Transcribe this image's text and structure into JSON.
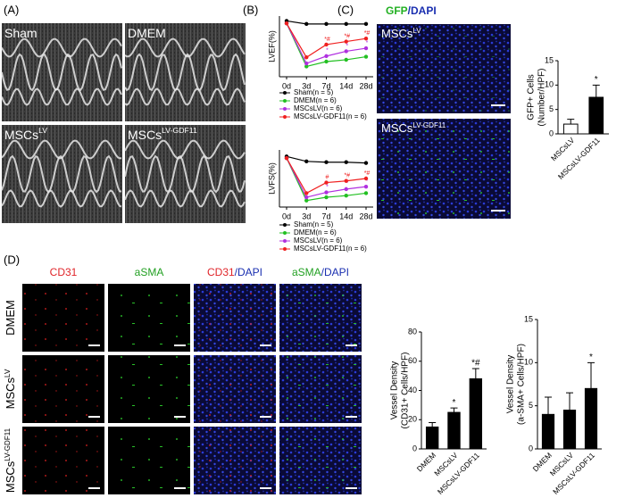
{
  "panels": {
    "a": "(A)",
    "b": "(B)",
    "c": "(C)",
    "d": "(D)"
  },
  "echo": [
    {
      "text": "Sham"
    },
    {
      "text": "DMEM"
    },
    {
      "text": "MSCs",
      "sup": "LV"
    },
    {
      "text": "MSCs",
      "sup": "LV-GDF11"
    }
  ],
  "gfp": {
    "title": [
      {
        "text": "GFP",
        "color": "#22b022"
      },
      {
        "text": "/DAPI",
        "color": "#1a2fb0"
      }
    ],
    "images": [
      {
        "text": "MSCs",
        "sup": "LV"
      },
      {
        "text": "MSCs",
        "sup": "LV-GDF11"
      }
    ]
  },
  "stain": {
    "columns": [
      [
        {
          "text": "CD31",
          "color": "#e0252a"
        }
      ],
      [
        {
          "text": "aSMA",
          "color": "#22a022"
        }
      ],
      [
        {
          "text": "CD31",
          "color": "#e0252a"
        },
        {
          "text": "/DAPI",
          "color": "#1a2fb0"
        }
      ],
      [
        {
          "text": "aSMA",
          "color": "#22a022"
        },
        {
          "text": "/DAPI",
          "color": "#1a2fb0"
        }
      ]
    ],
    "rows": [
      {
        "text": "DMEM"
      },
      {
        "text": "MSCs",
        "sup": "LV"
      },
      {
        "text": "MSCs",
        "sup": "LV-GDF11"
      }
    ]
  },
  "chart_data": [
    {
      "type": "line",
      "ylabel": "LVEF(%)",
      "categories": [
        "0d",
        "3d",
        "7d",
        "14d",
        "28d"
      ],
      "ylim": [
        0,
        100
      ],
      "series": [
        {
          "name": "Sham(n = 5)",
          "color": "#000000",
          "values": [
            92,
            87,
            87,
            87,
            87
          ]
        },
        {
          "name": "DMEM(n = 6)",
          "color": "#22c022",
          "values": [
            88,
            17,
            25,
            28,
            33
          ]
        },
        {
          "name": "MSCsLV(n = 6)",
          "color": "#b030e0",
          "values": [
            88,
            22,
            34,
            42,
            47
          ],
          "point_labels": [
            null,
            null,
            "*",
            "*",
            "*"
          ]
        },
        {
          "name": "MSCsLV-GDF11(n = 6)",
          "color": "#f02020",
          "values": [
            88,
            32,
            53,
            58,
            63
          ],
          "point_labels": [
            null,
            null,
            "*#",
            "*#",
            "*#"
          ]
        }
      ]
    },
    {
      "type": "line",
      "ylabel": "LVFS(%)",
      "categories": [
        "0d",
        "3d",
        "7d",
        "14d",
        "28d"
      ],
      "ylim": [
        0,
        70
      ],
      "series": [
        {
          "name": "Sham(n = 5)",
          "color": "#000000",
          "values": [
            62,
            56,
            55,
            55,
            54
          ]
        },
        {
          "name": "DMEM(n = 6)",
          "color": "#22c022",
          "values": [
            60,
            8,
            12,
            14,
            17
          ]
        },
        {
          "name": "MSCsLV(n = 6)",
          "color": "#b030e0",
          "values": [
            60,
            12,
            18,
            22,
            25
          ],
          "point_labels": [
            null,
            null,
            "*",
            "*",
            "*"
          ]
        },
        {
          "name": "MSCsLV-GDF11(n = 6)",
          "color": "#f02020",
          "values": [
            60,
            17,
            30,
            32,
            35
          ],
          "point_labels": [
            null,
            null,
            "#",
            "*#",
            "*#"
          ]
        }
      ]
    },
    {
      "type": "bar",
      "ylabel": [
        "GFP+ Cells",
        "(Number/HPF)"
      ],
      "categories": [
        "MSCsLV",
        "MSCsLV-GDF11"
      ],
      "values": [
        2,
        7.5
      ],
      "errors": [
        1,
        2.5
      ],
      "annotations": [
        null,
        "*"
      ],
      "colors": [
        "#ffffff",
        "#000000"
      ],
      "ylim": [
        0,
        15
      ],
      "yticks": [
        0,
        5,
        10,
        15
      ]
    },
    {
      "type": "bar",
      "ylabel": [
        "Vessel Density",
        "(CD31+ Cells/HPF)"
      ],
      "categories": [
        "DMEM",
        "MSCsLV",
        "MSCsLV-GDF11"
      ],
      "values": [
        15,
        25,
        48
      ],
      "errors": [
        3,
        3,
        7
      ],
      "annotations": [
        null,
        "*",
        "*#"
      ],
      "color": "#000000",
      "ylim": [
        0,
        80
      ],
      "yticks": [
        0,
        20,
        40,
        60,
        80
      ]
    },
    {
      "type": "bar",
      "ylabel": [
        "Vessel Density",
        "(a-SMA+ Cells/HPF)"
      ],
      "categories": [
        "DMEM",
        "MSCsLV",
        "MSCsLV-GDF11"
      ],
      "values": [
        4,
        4.5,
        7
      ],
      "errors": [
        2,
        2,
        3
      ],
      "annotations": [
        null,
        null,
        "*"
      ],
      "color": "#000000",
      "ylim": [
        0,
        15
      ],
      "yticks": [
        0,
        5,
        10,
        15
      ]
    }
  ]
}
